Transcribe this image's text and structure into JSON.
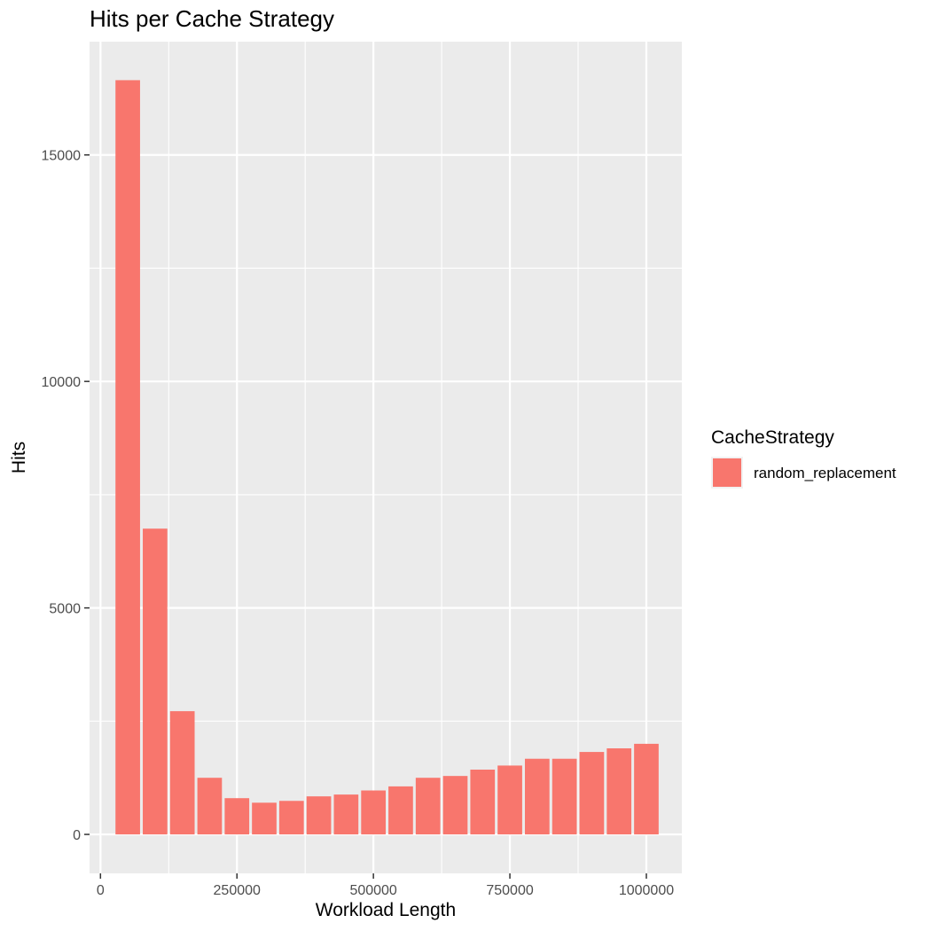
{
  "chart_data": {
    "type": "bar",
    "title": "Hits per Cache Strategy",
    "xlabel": "Workload Length",
    "ylabel": "Hits",
    "x": [
      50000,
      100000,
      150000,
      200000,
      250000,
      300000,
      350000,
      400000,
      450000,
      500000,
      550000,
      600000,
      650000,
      700000,
      750000,
      800000,
      850000,
      900000,
      950000,
      1000000
    ],
    "series": [
      {
        "name": "random_replacement",
        "values": [
          16650,
          6750,
          2720,
          1250,
          800,
          700,
          740,
          840,
          880,
          970,
          1060,
          1250,
          1290,
          1430,
          1520,
          1670,
          1670,
          1820,
          1900,
          2000
        ]
      }
    ],
    "xlim": [
      -20000,
      1065000
    ],
    "ylim": [
      -860,
      17500
    ],
    "xticks": [
      0,
      250000,
      500000,
      750000,
      1000000
    ],
    "xtick_labels": [
      "0",
      "250000",
      "500000",
      "750000",
      "1000000"
    ],
    "yticks": [
      0,
      5000,
      10000,
      15000
    ],
    "ytick_labels": [
      "0",
      "5000",
      "10000",
      "15000"
    ],
    "bar_width": 45000,
    "legend_title": "CacheStrategy",
    "legend_position": "right",
    "grid": true,
    "colors": {
      "bar": "#F8766D",
      "panel": "#EBEBEB",
      "grid": "#FFFFFF"
    }
  }
}
